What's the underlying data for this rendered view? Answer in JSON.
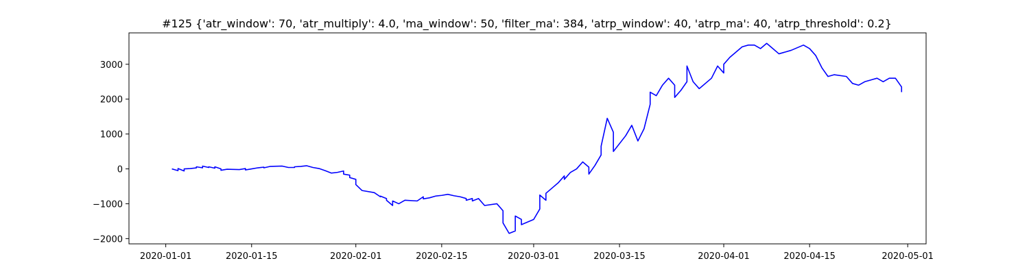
{
  "chart_data": {
    "type": "line",
    "title": "#125 {'atr_window': 70, 'atr_multiply': 4.0, 'ma_window': 50, 'filter_ma': 384, 'atrp_window': 40, 'atrp_ma': 40, 'atrp_threshold': 0.2}",
    "xlabel": "",
    "ylabel": "",
    "x_type": "date",
    "xlim": [
      "2019-12-26",
      "2020-05-04"
    ],
    "ylim": [
      -2150,
      3900
    ],
    "x_ticks": [
      "2020-01-01",
      "2020-01-15",
      "2020-02-01",
      "2020-02-15",
      "2020-03-01",
      "2020-03-15",
      "2020-04-01",
      "2020-04-15",
      "2020-05-01"
    ],
    "y_ticks": [
      -2000,
      -1000,
      0,
      1000,
      2000,
      3000
    ],
    "y_tick_labels": [
      "−2000",
      "−1000",
      "0",
      "1000",
      "2000",
      "3000"
    ],
    "grid": false,
    "legend": "none",
    "line_color": "#0000ff",
    "series": [
      {
        "points": [
          [
            "2020-01-02",
            0
          ],
          [
            "2020-01-03",
            -50
          ],
          [
            "2020-01-03",
            10
          ],
          [
            "2020-01-04",
            -60
          ],
          [
            "2020-01-04",
            0
          ],
          [
            "2020-01-05",
            10
          ],
          [
            "2020-01-06",
            30
          ],
          [
            "2020-01-06",
            60
          ],
          [
            "2020-01-07",
            30
          ],
          [
            "2020-01-07",
            80
          ],
          [
            "2020-01-08",
            40
          ],
          [
            "2020-01-08",
            60
          ],
          [
            "2020-01-09",
            20
          ],
          [
            "2020-01-09",
            60
          ],
          [
            "2020-01-10",
            0
          ],
          [
            "2020-01-10",
            -40
          ],
          [
            "2020-01-11",
            -10
          ],
          [
            "2020-01-13",
            -20
          ],
          [
            "2020-01-14",
            10
          ],
          [
            "2020-01-14",
            -30
          ],
          [
            "2020-01-15",
            0
          ],
          [
            "2020-01-16",
            30
          ],
          [
            "2020-01-17",
            50
          ],
          [
            "2020-01-17",
            30
          ],
          [
            "2020-01-18",
            70
          ],
          [
            "2020-01-20",
            80
          ],
          [
            "2020-01-21",
            40
          ],
          [
            "2020-01-22",
            40
          ],
          [
            "2020-01-22",
            60
          ],
          [
            "2020-01-23",
            70
          ],
          [
            "2020-01-24",
            90
          ],
          [
            "2020-01-25",
            40
          ],
          [
            "2020-01-26",
            10
          ],
          [
            "2020-01-27",
            -50
          ],
          [
            "2020-01-28",
            -120
          ],
          [
            "2020-01-29",
            -100
          ],
          [
            "2020-01-30",
            -60
          ],
          [
            "2020-01-30",
            -150
          ],
          [
            "2020-01-31",
            -180
          ],
          [
            "2020-01-31",
            -250
          ],
          [
            "2020-02-01",
            -300
          ],
          [
            "2020-02-01",
            -450
          ],
          [
            "2020-02-02",
            -620
          ],
          [
            "2020-02-04",
            -680
          ],
          [
            "2020-02-05",
            -800
          ],
          [
            "2020-02-05",
            -780
          ],
          [
            "2020-02-06",
            -850
          ],
          [
            "2020-02-06",
            -900
          ],
          [
            "2020-02-07",
            -1050
          ],
          [
            "2020-02-07",
            -920
          ],
          [
            "2020-02-08",
            -1000
          ],
          [
            "2020-02-09",
            -900
          ],
          [
            "2020-02-11",
            -920
          ],
          [
            "2020-02-12",
            -800
          ],
          [
            "2020-02-12",
            -860
          ],
          [
            "2020-02-13",
            -830
          ],
          [
            "2020-02-14",
            -780
          ],
          [
            "2020-02-15",
            -760
          ],
          [
            "2020-02-16",
            -730
          ],
          [
            "2020-02-17",
            -770
          ],
          [
            "2020-02-18",
            -800
          ],
          [
            "2020-02-19",
            -850
          ],
          [
            "2020-02-19",
            -900
          ],
          [
            "2020-02-20",
            -850
          ],
          [
            "2020-02-20",
            -920
          ],
          [
            "2020-02-21",
            -850
          ],
          [
            "2020-02-22",
            -1050
          ],
          [
            "2020-02-24",
            -1000
          ],
          [
            "2020-02-25",
            -1200
          ],
          [
            "2020-02-25",
            -1550
          ],
          [
            "2020-02-26",
            -1850
          ],
          [
            "2020-02-27",
            -1780
          ],
          [
            "2020-02-27",
            -1350
          ],
          [
            "2020-02-28",
            -1450
          ],
          [
            "2020-02-28",
            -1600
          ],
          [
            "2020-03-01",
            -1450
          ],
          [
            "2020-03-02",
            -1150
          ],
          [
            "2020-03-02",
            -750
          ],
          [
            "2020-03-03",
            -900
          ],
          [
            "2020-03-03",
            -700
          ],
          [
            "2020-03-04",
            -550
          ],
          [
            "2020-03-05",
            -400
          ],
          [
            "2020-03-06",
            -200
          ],
          [
            "2020-03-06",
            -300
          ],
          [
            "2020-03-07",
            -100
          ],
          [
            "2020-03-08",
            0
          ],
          [
            "2020-03-09",
            200
          ],
          [
            "2020-03-10",
            50
          ],
          [
            "2020-03-10",
            -150
          ],
          [
            "2020-03-11",
            100
          ],
          [
            "2020-03-12",
            400
          ],
          [
            "2020-03-12",
            650
          ],
          [
            "2020-03-13",
            1450
          ],
          [
            "2020-03-14",
            1050
          ],
          [
            "2020-03-14",
            500
          ],
          [
            "2020-03-16",
            950
          ],
          [
            "2020-03-17",
            1250
          ],
          [
            "2020-03-18",
            800
          ],
          [
            "2020-03-19",
            1150
          ],
          [
            "2020-03-20",
            1850
          ],
          [
            "2020-03-20",
            2200
          ],
          [
            "2020-03-21",
            2100
          ],
          [
            "2020-03-22",
            2400
          ],
          [
            "2020-03-23",
            2600
          ],
          [
            "2020-03-24",
            2400
          ],
          [
            "2020-03-24",
            2050
          ],
          [
            "2020-03-25",
            2250
          ],
          [
            "2020-03-26",
            2500
          ],
          [
            "2020-03-26",
            2950
          ],
          [
            "2020-03-27",
            2500
          ],
          [
            "2020-03-28",
            2300
          ],
          [
            "2020-03-30",
            2600
          ],
          [
            "2020-03-31",
            2950
          ],
          [
            "2020-04-01",
            2750
          ],
          [
            "2020-04-01",
            3000
          ],
          [
            "2020-04-02",
            3200
          ],
          [
            "2020-04-03",
            3350
          ],
          [
            "2020-04-04",
            3500
          ],
          [
            "2020-04-05",
            3550
          ],
          [
            "2020-04-06",
            3550
          ],
          [
            "2020-04-07",
            3450
          ],
          [
            "2020-04-08",
            3600
          ],
          [
            "2020-04-09",
            3450
          ],
          [
            "2020-04-10",
            3300
          ],
          [
            "2020-04-12",
            3400
          ],
          [
            "2020-04-14",
            3550
          ],
          [
            "2020-04-15",
            3450
          ],
          [
            "2020-04-16",
            3250
          ],
          [
            "2020-04-17",
            2900
          ],
          [
            "2020-04-18",
            2650
          ],
          [
            "2020-04-19",
            2700
          ],
          [
            "2020-04-21",
            2650
          ],
          [
            "2020-04-22",
            2450
          ],
          [
            "2020-04-23",
            2400
          ],
          [
            "2020-04-24",
            2500
          ],
          [
            "2020-04-25",
            2550
          ],
          [
            "2020-04-26",
            2600
          ],
          [
            "2020-04-27",
            2500
          ],
          [
            "2020-04-28",
            2600
          ],
          [
            "2020-04-29",
            2600
          ],
          [
            "2020-04-30",
            2350
          ],
          [
            "2020-04-30",
            2200
          ]
        ]
      }
    ]
  }
}
